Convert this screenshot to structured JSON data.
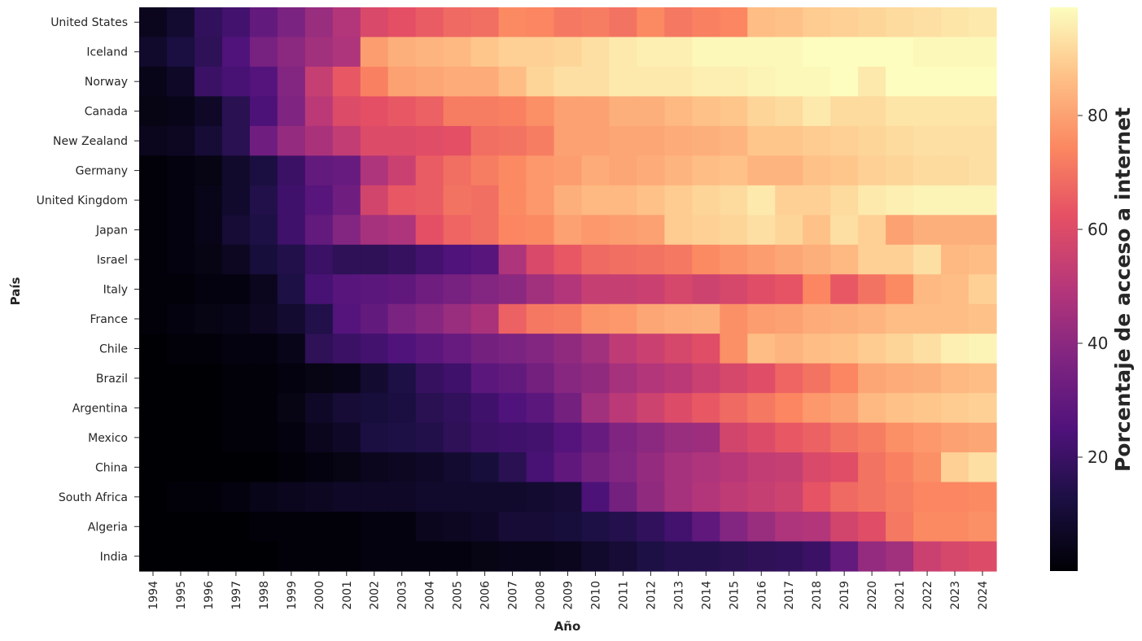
{
  "chart_data": {
    "type": "heatmap",
    "xlabel": "Año",
    "ylabel": "País",
    "colorbar_label": "Porcentaje de acceso a internet",
    "colormap": "magma",
    "value_range": [
      0,
      99
    ],
    "colorbar_ticks": [
      20,
      40,
      60,
      80
    ],
    "x": [
      1994,
      1995,
      1996,
      1997,
      1998,
      1999,
      2000,
      2001,
      2002,
      2003,
      2004,
      2005,
      2006,
      2007,
      2008,
      2009,
      2010,
      2011,
      2012,
      2013,
      2014,
      2015,
      2016,
      2017,
      2018,
      2019,
      2020,
      2021,
      2022,
      2023,
      2024
    ],
    "y": [
      "United States",
      "Iceland",
      "Norway",
      "Canada",
      "New Zealand",
      "Germany",
      "United Kingdom",
      "Japan",
      "Israel",
      "Italy",
      "France",
      "Chile",
      "Brazil",
      "Argentina",
      "Mexico",
      "China",
      "South Africa",
      "Algeria",
      "India"
    ],
    "values": [
      [
        5,
        9,
        18,
        22,
        30,
        36,
        43,
        49,
        59,
        62,
        65,
        68,
        69,
        75,
        74,
        71,
        72,
        70,
        75,
        71,
        73,
        74,
        86,
        87,
        89,
        90,
        91,
        92,
        93,
        94,
        95
      ],
      [
        8,
        12,
        17,
        25,
        35,
        40,
        45,
        48,
        79,
        83,
        84,
        85,
        88,
        90,
        90,
        91,
        93,
        95,
        96,
        96,
        98,
        98,
        98,
        98,
        99,
        99,
        99,
        99,
        98,
        98,
        98
      ],
      [
        4,
        7,
        20,
        23,
        26,
        38,
        54,
        64,
        73,
        80,
        81,
        82,
        82,
        86,
        91,
        93,
        93,
        95,
        95,
        95,
        96,
        96,
        97,
        98,
        98,
        99,
        95,
        99,
        99,
        99,
        99
      ],
      [
        3,
        4,
        7,
        16,
        24,
        37,
        51,
        60,
        62,
        64,
        66,
        72,
        72,
        73,
        76,
        80,
        80,
        83,
        83,
        85,
        87,
        88,
        91,
        92,
        95,
        92,
        92,
        94,
        94,
        94,
        94
      ],
      [
        5,
        6,
        10,
        16,
        33,
        42,
        47,
        53,
        60,
        60,
        61,
        62,
        69,
        70,
        72,
        80,
        80,
        81,
        81,
        82,
        83,
        84,
        88,
        88,
        89,
        90,
        91,
        92,
        93,
        93,
        93
      ],
      [
        1,
        2,
        3,
        8,
        12,
        20,
        30,
        31,
        48,
        55,
        65,
        69,
        72,
        75,
        78,
        79,
        82,
        81,
        82,
        84,
        86,
        87,
        84,
        84,
        87,
        88,
        90,
        91,
        92,
        92,
        93
      ],
      [
        1,
        2,
        4,
        8,
        14,
        21,
        27,
        33,
        57,
        64,
        65,
        70,
        69,
        75,
        78,
        83,
        85,
        85,
        87,
        89,
        91,
        92,
        95,
        90,
        90,
        92,
        95,
        96,
        97,
        97,
        97
      ],
      [
        1,
        2,
        4,
        10,
        13,
        21,
        30,
        38,
        46,
        48,
        62,
        67,
        69,
        74,
        75,
        80,
        78,
        79,
        80,
        89,
        90,
        91,
        93,
        91,
        87,
        93,
        90,
        80,
        83,
        83,
        83
      ],
      [
        1,
        2,
        3,
        6,
        11,
        14,
        20,
        17,
        17,
        19,
        22,
        25,
        27,
        48,
        59,
        64,
        68,
        69,
        70,
        71,
        75,
        77,
        79,
        81,
        83,
        85,
        90,
        90,
        93,
        85,
        86
      ],
      [
        1,
        1,
        2,
        2,
        5,
        13,
        23,
        27,
        28,
        29,
        33,
        35,
        38,
        40,
        45,
        49,
        54,
        54,
        55,
        58,
        56,
        58,
        61,
        63,
        74,
        64,
        70,
        75,
        85,
        86,
        90
      ],
      [
        1,
        2,
        3,
        4,
        6,
        9,
        14,
        26,
        30,
        36,
        39,
        43,
        47,
        66,
        71,
        72,
        77,
        78,
        81,
        82,
        83,
        76,
        79,
        80,
        82,
        83,
        84,
        86,
        86,
        86,
        87
      ],
      [
        0,
        1,
        1,
        2,
        2,
        4,
        17,
        20,
        22,
        25,
        28,
        31,
        34,
        36,
        38,
        41,
        45,
        52,
        55,
        58,
        61,
        76,
        86,
        84,
        86,
        87,
        89,
        91,
        93,
        96,
        97
      ],
      [
        0,
        0,
        0,
        1,
        1,
        2,
        3,
        4,
        9,
        13,
        19,
        21,
        28,
        30,
        34,
        39,
        41,
        46,
        49,
        51,
        55,
        58,
        61,
        67,
        70,
        74,
        81,
        82,
        83,
        85,
        86
      ],
      [
        0,
        0,
        0,
        1,
        1,
        3,
        7,
        10,
        11,
        12,
        16,
        18,
        21,
        25,
        28,
        34,
        45,
        51,
        56,
        60,
        64,
        68,
        71,
        74,
        78,
        80,
        85,
        87,
        88,
        89,
        90
      ],
      [
        0,
        0,
        0,
        1,
        1,
        2,
        5,
        7,
        12,
        13,
        14,
        17,
        20,
        21,
        22,
        26,
        31,
        37,
        40,
        43,
        44,
        57,
        60,
        64,
        66,
        70,
        72,
        76,
        78,
        80,
        81
      ],
      [
        0,
        0,
        0,
        0,
        0,
        1,
        2,
        3,
        5,
        6,
        7,
        9,
        11,
        16,
        23,
        29,
        34,
        38,
        42,
        46,
        48,
        50,
        53,
        54,
        59,
        61,
        70,
        73,
        76,
        90,
        93
      ],
      [
        0,
        1,
        1,
        2,
        4,
        5,
        6,
        7,
        7,
        7,
        8,
        8,
        8,
        8,
        9,
        10,
        24,
        34,
        41,
        46,
        49,
        52,
        54,
        56,
        63,
        68,
        70,
        72,
        74,
        74,
        75
      ],
      [
        0,
        0,
        0,
        0,
        1,
        1,
        1,
        1,
        2,
        2,
        5,
        6,
        7,
        10,
        10,
        11,
        13,
        15,
        18,
        22,
        29,
        38,
        43,
        48,
        49,
        57,
        61,
        71,
        75,
        75,
        76
      ],
      [
        0,
        0,
        0,
        0,
        0,
        1,
        1,
        1,
        2,
        2,
        2,
        2,
        3,
        4,
        4,
        5,
        8,
        10,
        13,
        15,
        15,
        16,
        17,
        18,
        20,
        30,
        42,
        45,
        55,
        58,
        60
      ]
    ]
  }
}
